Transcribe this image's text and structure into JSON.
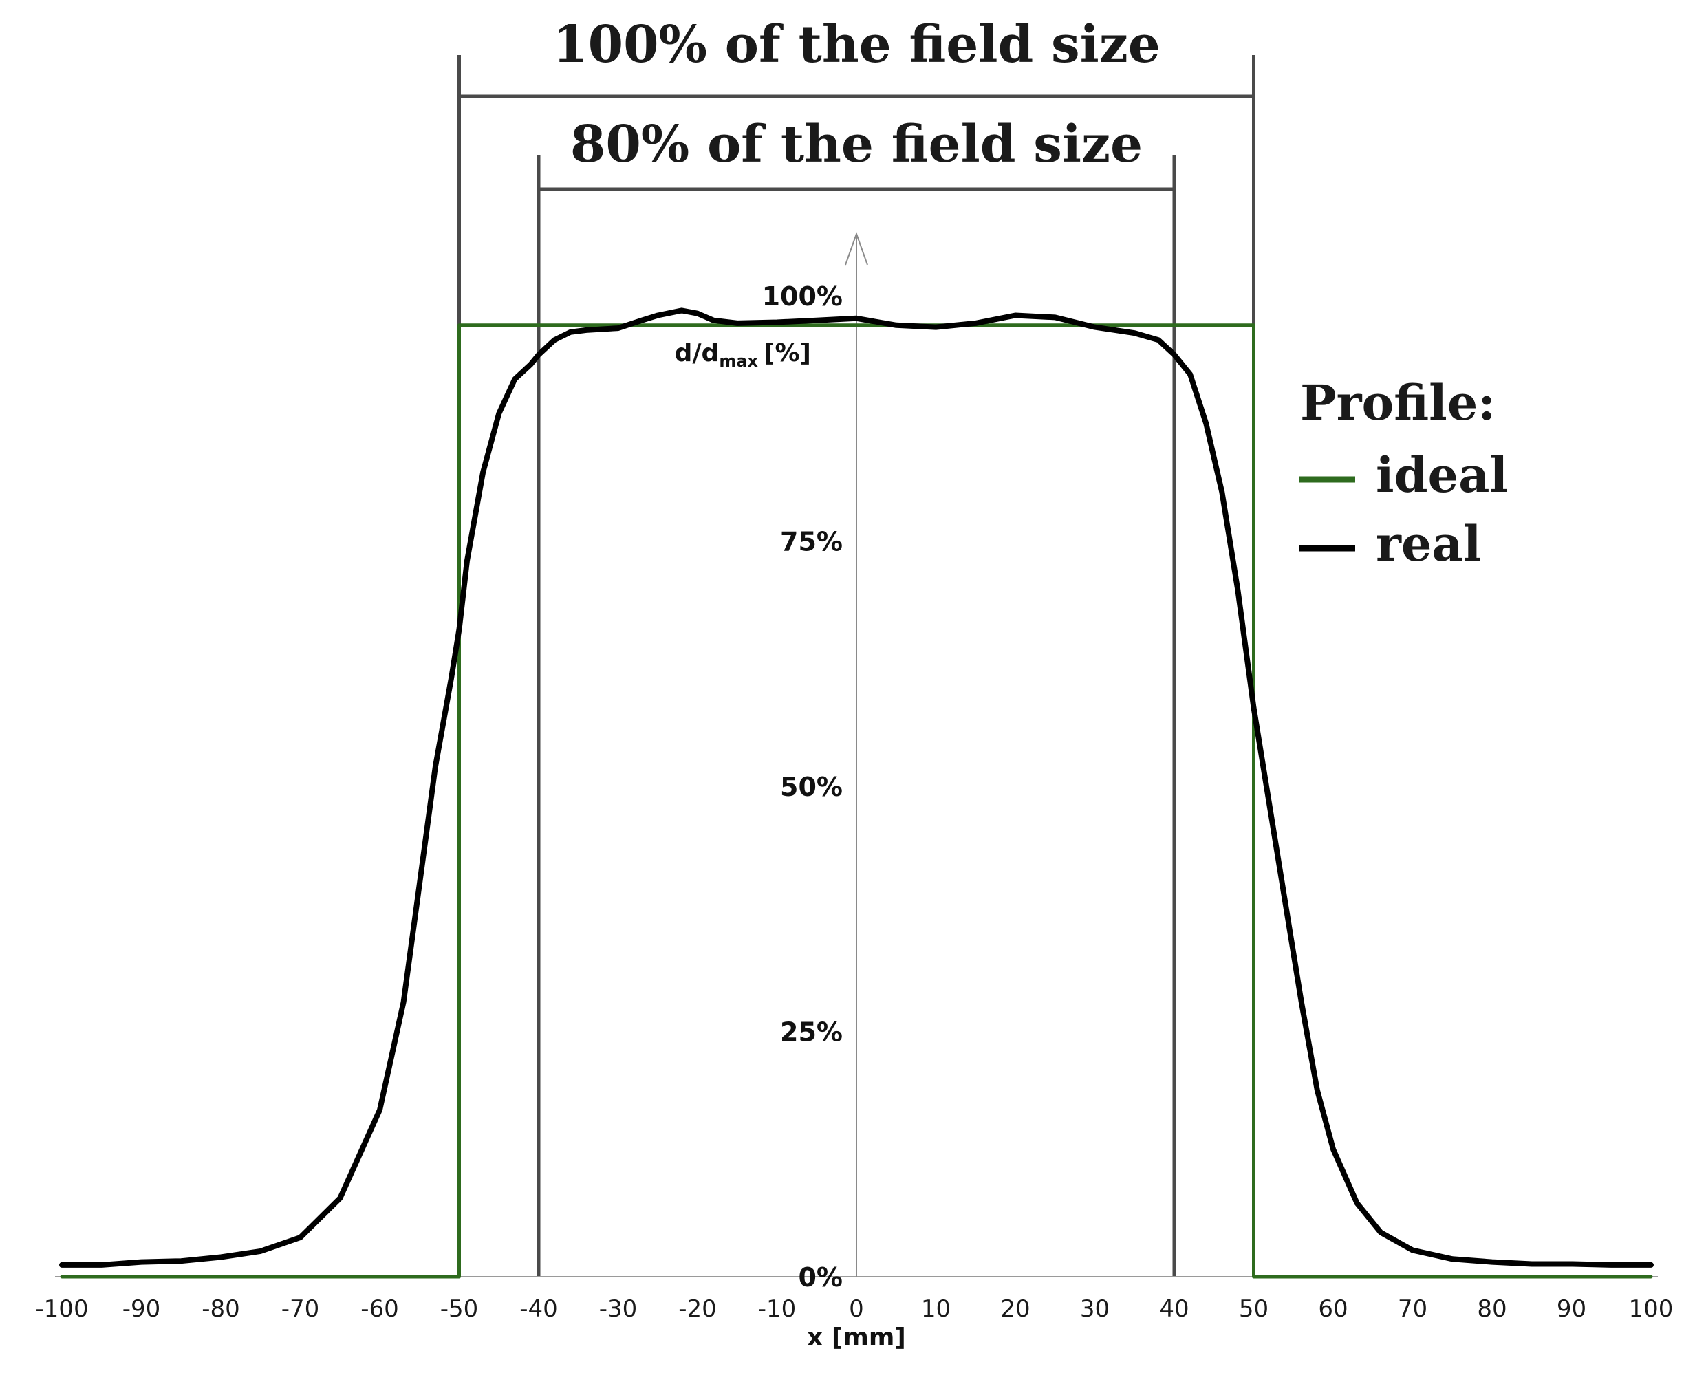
{
  "chart_data": {
    "type": "line",
    "xlabel": "x [mm]",
    "ylabel": "d/d",
    "ylabel_sub": "max",
    "ylabel_unit": "[%]",
    "xlim": [
      -100,
      100
    ],
    "ylim": [
      0,
      100
    ],
    "x_ticks": [
      -100,
      -90,
      -80,
      -70,
      -60,
      -50,
      -40,
      -30,
      -20,
      -10,
      0,
      10,
      20,
      30,
      40,
      50,
      60,
      70,
      80,
      90,
      100
    ],
    "y_ticks": [
      {
        "value": 0,
        "label": "0%"
      },
      {
        "value": 25,
        "label": "25%"
      },
      {
        "value": 50,
        "label": "50%"
      },
      {
        "value": 75,
        "label": "75%"
      },
      {
        "value": 100,
        "label": "100%"
      }
    ],
    "legend": {
      "title": "Profile:",
      "position": "right",
      "entries": [
        {
          "label": "ideal",
          "color": "#2e6b1e"
        },
        {
          "label": "real",
          "color": "#000000"
        }
      ]
    },
    "series": [
      {
        "name": "ideal",
        "color": "#2e6b1e",
        "x": [
          -100,
          -50,
          -50,
          50,
          50,
          100
        ],
        "y": [
          0,
          0,
          97,
          97,
          0,
          0
        ]
      },
      {
        "name": "real",
        "color": "#000000",
        "x": [
          -100,
          -95,
          -90,
          -85,
          -80,
          -75,
          -70,
          -65,
          -60,
          -57,
          -55,
          -53,
          -51,
          -50,
          -49,
          -47,
          -45,
          -43,
          -41,
          -40,
          -38,
          -36,
          -34,
          -30,
          -27,
          -25,
          -22,
          -20,
          -18,
          -15,
          -10,
          -5,
          0,
          5,
          10,
          15,
          20,
          25,
          30,
          35,
          38,
          40,
          42,
          44,
          46,
          48,
          50,
          52,
          54,
          56,
          58,
          60,
          63,
          66,
          70,
          75,
          80,
          85,
          90,
          95,
          100
        ],
        "y": [
          1.2,
          1.2,
          1.5,
          1.6,
          2.0,
          2.6,
          4.0,
          8.0,
          17.0,
          28.0,
          40.0,
          52.0,
          61.0,
          66.0,
          73.0,
          82.0,
          88.0,
          91.5,
          93.0,
          94.0,
          95.5,
          96.3,
          96.5,
          96.7,
          97.5,
          98.0,
          98.5,
          98.2,
          97.5,
          97.2,
          97.3,
          97.5,
          97.7,
          97.0,
          96.8,
          97.2,
          98.0,
          97.8,
          96.8,
          96.2,
          95.5,
          94.0,
          92.0,
          87.0,
          80.0,
          70.0,
          58.0,
          48.0,
          38.0,
          28.0,
          19.0,
          13.0,
          7.5,
          4.5,
          2.7,
          1.8,
          1.5,
          1.3,
          1.3,
          1.2,
          1.2
        ]
      }
    ],
    "annotations": [
      {
        "label": "100% of the field size",
        "x_from": -50,
        "x_to": 50
      },
      {
        "label": "80% of the field size",
        "x_from": -40,
        "x_to": 40
      }
    ]
  }
}
